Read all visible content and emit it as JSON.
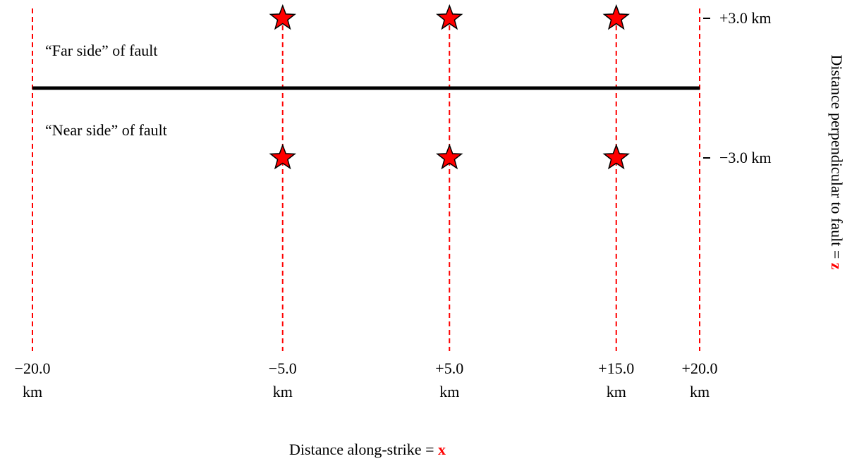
{
  "diagram": {
    "x_axis": {
      "label_text": "Distance along-strike = ",
      "label_var": "x",
      "ticks": [
        {
          "value": -20,
          "line1": "−20.0",
          "line2": "km"
        },
        {
          "value": -5,
          "line1": "−5.0",
          "line2": "km"
        },
        {
          "value": 5,
          "line1": "+5.0",
          "line2": "km"
        },
        {
          "value": 15,
          "line1": "+15.0",
          "line2": "km"
        },
        {
          "value": 20,
          "line1": "+20.0",
          "line2": "km"
        }
      ]
    },
    "z_axis": {
      "label_text": "Distance perpendicular to fault = ",
      "label_var": "z",
      "ticks": [
        {
          "value": 3,
          "label": "+3.0 km"
        },
        {
          "value": -3,
          "label": "−3.0 km"
        }
      ]
    },
    "fault": {
      "x_start": -20,
      "x_end": 20,
      "z": 0
    },
    "regions": {
      "far_side": "“Far side” of fault",
      "near_side": "“Near side” of fault"
    },
    "stations": [
      {
        "x": -5,
        "z": 3
      },
      {
        "x": 5,
        "z": 3
      },
      {
        "x": 15,
        "z": 3
      },
      {
        "x": -5,
        "z": -3
      },
      {
        "x": 5,
        "z": -3
      },
      {
        "x": 15,
        "z": -3
      }
    ],
    "colors": {
      "grid_line": "#ff0000",
      "fault": "#000000",
      "star_fill": "#ff0000",
      "star_stroke": "#000000",
      "accent": "#ff0000"
    }
  }
}
